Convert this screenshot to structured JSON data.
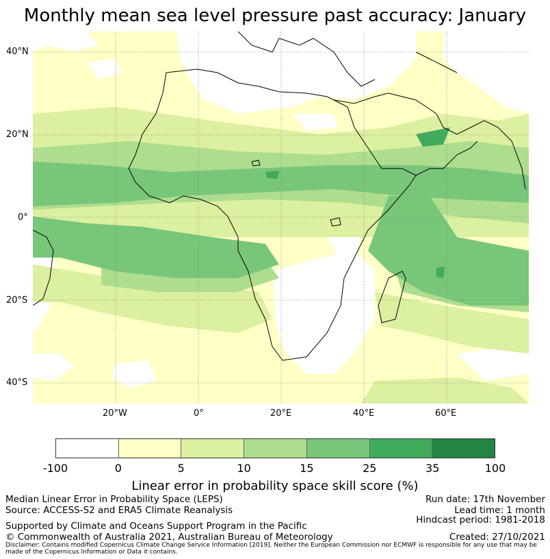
{
  "title": "Monthly mean sea level pressure past accuracy: January",
  "map": {
    "lat_labels": [
      "40°N",
      "20°N",
      "0°",
      "20°S",
      "40°S"
    ],
    "lon_labels": [
      "20°W",
      "0°",
      "20°E",
      "40°E",
      "60°E"
    ],
    "extent": {
      "lon_min": -40,
      "lon_max": 80,
      "lat_min": -45,
      "lat_max": 45
    },
    "colors": {
      "white": "#ffffff",
      "light_yellow": "#ffffc6",
      "pale_green": "#dbf0a0",
      "light_green": "#aedd8e",
      "mid_green": "#78c679",
      "green": "#41ab5d",
      "dark_green": "#238443",
      "coast": "#000000",
      "grid": "#888888"
    }
  },
  "colorbar": {
    "ticks": [
      "-100",
      "0",
      "5",
      "10",
      "15",
      "25",
      "35",
      "100"
    ],
    "colors": [
      "#ffffff",
      "#ffffc6",
      "#dbf0a0",
      "#aedd8e",
      "#78c679",
      "#41ab5d",
      "#238443"
    ],
    "label": "Linear error in probability space skill score (%)"
  },
  "info": {
    "left_line1": "Median Linear Error in Probability Space (LEPS)",
    "left_line2": "Source: ACCESS-S2 and ERA5 Climate Reanalysis",
    "support": "Supported by Climate and Oceans Support Program in the Pacific",
    "copyright": "© Commonwealth of Australia 2021, Australian Bureau of Meteorology",
    "run_date": "Run date: 17th November",
    "lead_time": "Lead time: 1 month",
    "hindcast": "Hindcast period: 1981-2018",
    "created": "Created: 27/10/2021",
    "disclaimer": "Disclaimer: Contains modified Copernicus Climate Change Service Information [2019]. Neither the European Commission nor ECMWF is responsible for any use that may be made of the Copernicus Information or Data it contains."
  }
}
